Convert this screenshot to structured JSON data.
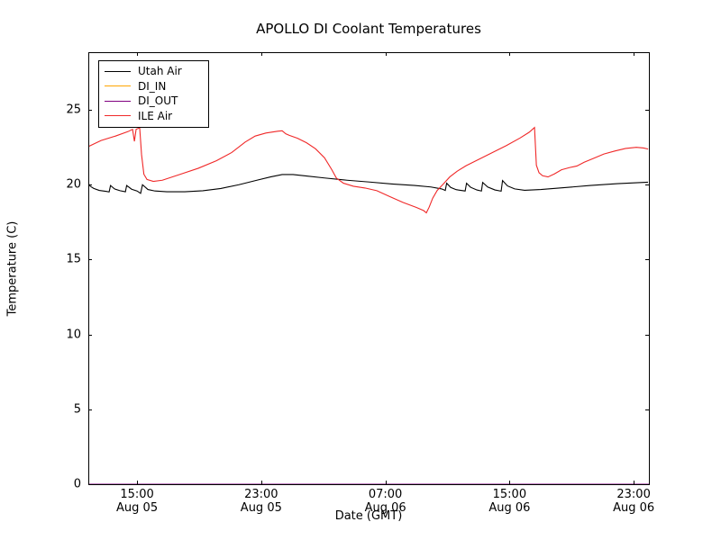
{
  "chart_data": {
    "type": "line",
    "title": "APOLLO DI Coolant Temperatures",
    "xlabel": "Date (GMT)",
    "ylabel": "Temperature (C)",
    "xlim": [
      11.86,
      47.98
    ],
    "ylim": [
      0,
      28.85
    ],
    "x_unit": "hours since Aug 05 00:00 GMT",
    "grid": false,
    "legend_position": "upper left",
    "xticks": [
      {
        "t": 15,
        "time": "15:00",
        "date": "Aug 05"
      },
      {
        "t": 23,
        "time": "23:00",
        "date": "Aug 05"
      },
      {
        "t": 31,
        "time": "07:00",
        "date": "Aug 06"
      },
      {
        "t": 39,
        "time": "15:00",
        "date": "Aug 06"
      },
      {
        "t": 47,
        "time": "23:00",
        "date": "Aug 06"
      }
    ],
    "yticks": [
      0,
      5,
      10,
      15,
      20,
      25
    ],
    "series": [
      {
        "name": "Utah Air",
        "color": "#000000",
        "points": [
          [
            11.86,
            20.1
          ],
          [
            11.98,
            19.9
          ],
          [
            12.21,
            19.75
          ],
          [
            12.56,
            19.62
          ],
          [
            13.03,
            19.55
          ],
          [
            13.2,
            19.52
          ],
          [
            13.29,
            19.95
          ],
          [
            13.55,
            19.72
          ],
          [
            13.9,
            19.6
          ],
          [
            14.25,
            19.53
          ],
          [
            14.33,
            19.95
          ],
          [
            14.65,
            19.7
          ],
          [
            15.0,
            19.58
          ],
          [
            15.23,
            19.42
          ],
          [
            15.35,
            20.0
          ],
          [
            15.7,
            19.68
          ],
          [
            16.16,
            19.58
          ],
          [
            16.92,
            19.53
          ],
          [
            18.08,
            19.53
          ],
          [
            19.24,
            19.6
          ],
          [
            20.4,
            19.75
          ],
          [
            21.56,
            20.0
          ],
          [
            22.72,
            20.3
          ],
          [
            23.6,
            20.52
          ],
          [
            24.35,
            20.68
          ],
          [
            25.05,
            20.68
          ],
          [
            25.92,
            20.58
          ],
          [
            27.08,
            20.45
          ],
          [
            28.53,
            20.3
          ],
          [
            29.98,
            20.18
          ],
          [
            31.43,
            20.05
          ],
          [
            32.88,
            19.95
          ],
          [
            33.93,
            19.85
          ],
          [
            34.63,
            19.72
          ],
          [
            34.86,
            19.62
          ],
          [
            34.95,
            20.1
          ],
          [
            35.21,
            19.82
          ],
          [
            35.56,
            19.67
          ],
          [
            36.14,
            19.58
          ],
          [
            36.23,
            20.1
          ],
          [
            36.49,
            19.83
          ],
          [
            36.9,
            19.65
          ],
          [
            37.19,
            19.58
          ],
          [
            37.27,
            20.15
          ],
          [
            37.59,
            19.85
          ],
          [
            38.06,
            19.65
          ],
          [
            38.46,
            19.57
          ],
          [
            38.55,
            20.28
          ],
          [
            38.87,
            19.92
          ],
          [
            39.33,
            19.72
          ],
          [
            39.97,
            19.63
          ],
          [
            41.02,
            19.68
          ],
          [
            42.47,
            19.8
          ],
          [
            44.21,
            19.95
          ],
          [
            45.95,
            20.07
          ],
          [
            47.92,
            20.17
          ]
        ]
      },
      {
        "name": "DI_IN",
        "color": "#ffa500",
        "points": [
          [
            11.86,
            0
          ],
          [
            47.98,
            0
          ]
        ]
      },
      {
        "name": "DI_OUT",
        "color": "#800080",
        "points": [
          [
            11.86,
            0
          ],
          [
            47.98,
            0
          ]
        ]
      },
      {
        "name": "ILE Air",
        "color": "#f02828",
        "points": [
          [
            11.86,
            22.55
          ],
          [
            12.68,
            22.95
          ],
          [
            13.61,
            23.25
          ],
          [
            14.42,
            23.55
          ],
          [
            14.71,
            23.7
          ],
          [
            14.83,
            22.9
          ],
          [
            14.94,
            23.7
          ],
          [
            15.17,
            23.8
          ],
          [
            15.29,
            22.0
          ],
          [
            15.44,
            20.7
          ],
          [
            15.64,
            20.35
          ],
          [
            16.05,
            20.22
          ],
          [
            16.63,
            20.3
          ],
          [
            17.79,
            20.7
          ],
          [
            18.95,
            21.1
          ],
          [
            20.11,
            21.6
          ],
          [
            21.1,
            22.15
          ],
          [
            21.97,
            22.85
          ],
          [
            22.61,
            23.25
          ],
          [
            23.3,
            23.45
          ],
          [
            24.06,
            23.57
          ],
          [
            24.35,
            23.6
          ],
          [
            24.58,
            23.4
          ],
          [
            24.81,
            23.3
          ],
          [
            25.34,
            23.1
          ],
          [
            25.92,
            22.8
          ],
          [
            26.5,
            22.4
          ],
          [
            27.08,
            21.8
          ],
          [
            27.55,
            21.0
          ],
          [
            27.84,
            20.45
          ],
          [
            28.3,
            20.1
          ],
          [
            28.94,
            19.9
          ],
          [
            29.69,
            19.78
          ],
          [
            30.45,
            19.6
          ],
          [
            31.26,
            19.22
          ],
          [
            32.13,
            18.82
          ],
          [
            33.0,
            18.48
          ],
          [
            33.47,
            18.27
          ],
          [
            33.64,
            18.12
          ],
          [
            33.82,
            18.5
          ],
          [
            34.05,
            19.1
          ],
          [
            34.34,
            19.62
          ],
          [
            34.69,
            20.0
          ],
          [
            35.15,
            20.52
          ],
          [
            35.62,
            20.9
          ],
          [
            36.2,
            21.27
          ],
          [
            37.07,
            21.72
          ],
          [
            37.94,
            22.17
          ],
          [
            38.81,
            22.62
          ],
          [
            39.68,
            23.12
          ],
          [
            40.26,
            23.5
          ],
          [
            40.61,
            23.82
          ],
          [
            40.73,
            21.3
          ],
          [
            40.9,
            20.8
          ],
          [
            41.13,
            20.6
          ],
          [
            41.48,
            20.52
          ],
          [
            41.89,
            20.72
          ],
          [
            42.35,
            21.0
          ],
          [
            42.88,
            21.15
          ],
          [
            43.34,
            21.25
          ],
          [
            43.81,
            21.5
          ],
          [
            44.39,
            21.75
          ],
          [
            45.08,
            22.05
          ],
          [
            45.78,
            22.25
          ],
          [
            46.48,
            22.42
          ],
          [
            47.17,
            22.5
          ],
          [
            47.64,
            22.45
          ],
          [
            47.93,
            22.38
          ]
        ]
      }
    ]
  }
}
